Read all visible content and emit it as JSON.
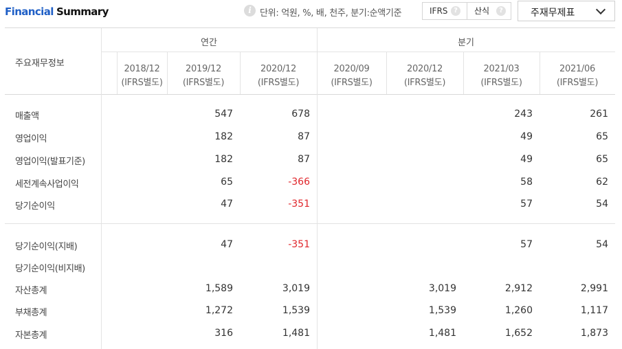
{
  "header": {
    "title_part1": "Financial",
    "title_part2": "Summary",
    "info_icon": "info-icon",
    "unit_text": "단위: 억원, %, 배, 천주, 분기:순액기준",
    "toggle": {
      "ifrs": "IFRS",
      "sansik": "산식",
      "help": "?"
    },
    "dropdown": {
      "selected": "주재무제표"
    }
  },
  "table": {
    "corner": "주요재무정보",
    "groups": {
      "annual": "연간",
      "quarterly": "분기"
    },
    "columns": [
      {
        "date": "2018/12",
        "basis": "(IFRS별도)"
      },
      {
        "date": "2019/12",
        "basis": "(IFRS별도)"
      },
      {
        "date": "2020/12",
        "basis": "(IFRS별도)"
      },
      {
        "date": "2020/09",
        "basis": "(IFRS별도)"
      },
      {
        "date": "2020/12",
        "basis": "(IFRS별도)"
      },
      {
        "date": "2021/03",
        "basis": "(IFRS별도)"
      },
      {
        "date": "2021/06",
        "basis": "(IFRS별도)"
      }
    ],
    "rows": [
      {
        "label": "매출액",
        "values": [
          "",
          "547",
          "678",
          "",
          "",
          "243",
          "261"
        ]
      },
      {
        "label": "영업이익",
        "values": [
          "",
          "182",
          "87",
          "",
          "",
          "49",
          "65"
        ]
      },
      {
        "label": "영업이익(발표기준)",
        "values": [
          "",
          "182",
          "87",
          "",
          "",
          "49",
          "65"
        ]
      },
      {
        "label": "세전계속사업이익",
        "values": [
          "",
          "65",
          "-366",
          "",
          "",
          "58",
          "62"
        ]
      },
      {
        "label": "당기순이익",
        "values": [
          "",
          "47",
          "-351",
          "",
          "",
          "57",
          "54"
        ]
      },
      {
        "label": "당기순이익(지배)",
        "values": [
          "",
          "47",
          "-351",
          "",
          "",
          "57",
          "54"
        ]
      },
      {
        "label": "당기순이익(비지배)",
        "values": [
          "",
          "",
          "",
          "",
          "",
          "",
          ""
        ]
      },
      {
        "label": "자산총계",
        "values": [
          "",
          "1,589",
          "3,019",
          "",
          "3,019",
          "2,912",
          "2,991"
        ]
      },
      {
        "label": "부채총계",
        "values": [
          "",
          "1,272",
          "1,539",
          "",
          "1,539",
          "1,260",
          "1,117"
        ]
      },
      {
        "label": "자본총계",
        "values": [
          "",
          "316",
          "1,481",
          "",
          "1,481",
          "1,652",
          "1,873"
        ]
      }
    ],
    "colors": {
      "negative": "#e0262b",
      "title_accent": "#1f5fc6"
    }
  }
}
